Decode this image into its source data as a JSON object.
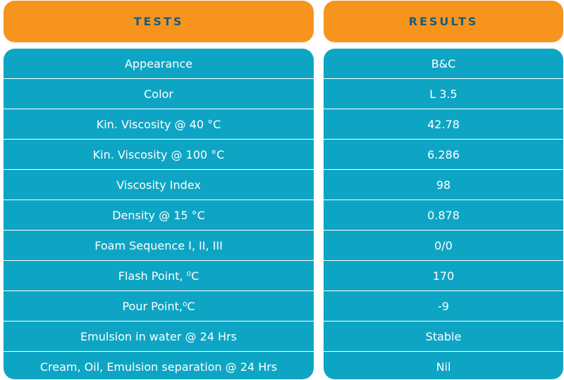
{
  "headers": {
    "tests": "TESTS",
    "results": "RESULTS"
  },
  "rows": [
    {
      "test": "Appearance",
      "result": "B&C"
    },
    {
      "test": "Color",
      "result": "L 3.5"
    },
    {
      "test": "Kin. Viscosity @ 40 °C",
      "result": "42.78"
    },
    {
      "test": "Kin. Viscosity @ 100 °C",
      "result": "6.286"
    },
    {
      "test": "Viscosity Index",
      "result": "98"
    },
    {
      "test": "Density @ 15 °C",
      "result": "0.878"
    },
    {
      "test": "Foam Sequence I, II, III",
      "result": "0/0"
    },
    {
      "test": "Flash Point, ⁰C",
      "result": "170"
    },
    {
      "test": "Pour Point,⁰C",
      "result": "-9"
    },
    {
      "test": "Emulsion in water @ 24 Hrs",
      "result": "Stable"
    },
    {
      "test": "Cream, Oil, Emulsion separation @ 24 Hrs",
      "result": "Nil"
    }
  ],
  "colors": {
    "header": "#f7941d",
    "header_text": "#1b5d7c",
    "body": "#0ea5c4",
    "body_text": "#ffffff"
  }
}
